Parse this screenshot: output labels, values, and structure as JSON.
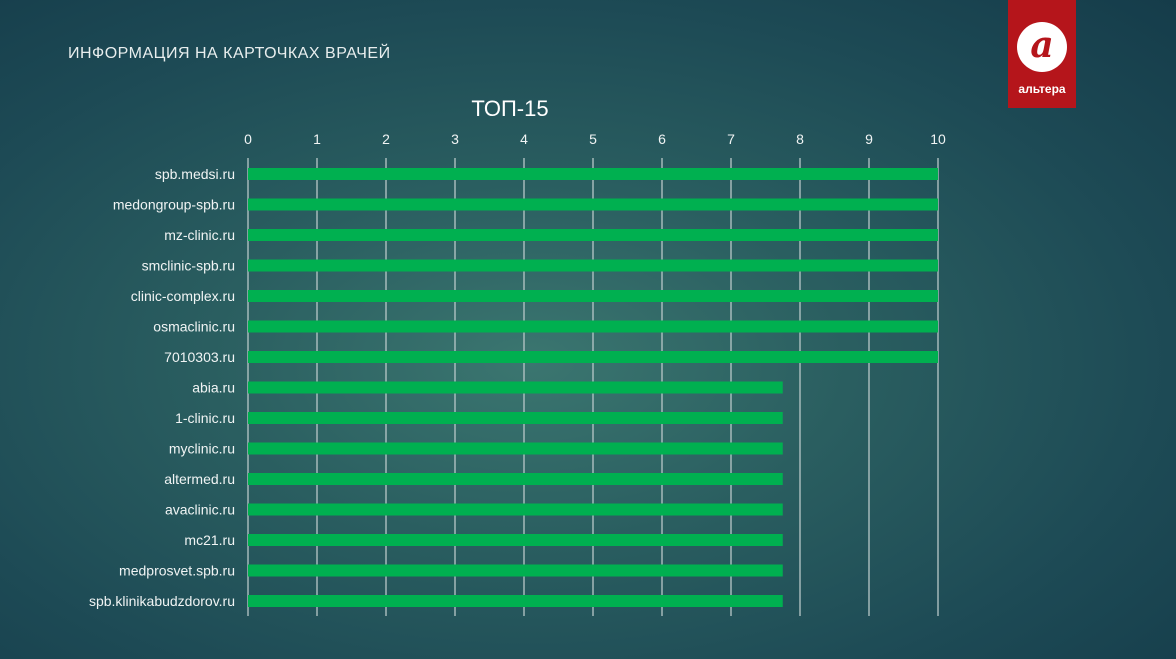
{
  "header": {
    "title": "ИНФОРМАЦИЯ НА КАРТОЧКАХ ВРАЧЕЙ"
  },
  "logo": {
    "text": "альтера",
    "glyph": "a"
  },
  "colors": {
    "bar": "#00b050",
    "logo_bg": "#b5151b"
  },
  "chart_data": {
    "type": "bar",
    "orientation": "horizontal",
    "title": "ТОП-15",
    "xlabel": "",
    "ylabel": "",
    "xlim": [
      0,
      10
    ],
    "x_ticks": [
      "0",
      "1",
      "2",
      "3",
      "4",
      "5",
      "6",
      "7",
      "8",
      "9",
      "10"
    ],
    "x_axis_position": "top",
    "grid": true,
    "categories": [
      "spb.medsi.ru",
      "medongroup-spb.ru",
      "mz-clinic.ru",
      "smclinic-spb.ru",
      "clinic-complex.ru",
      "osmaclinic.ru",
      "7010303.ru",
      "abia.ru",
      "1-clinic.ru",
      "myclinic.ru",
      "altermed.ru",
      "avaclinic.ru",
      "mc21.ru",
      "medprosvet.spb.ru",
      "spb.klinikabudzdorov.ru"
    ],
    "values": [
      10,
      10,
      10,
      10,
      10,
      10,
      10,
      7.75,
      7.75,
      7.75,
      7.75,
      7.75,
      7.75,
      7.75,
      7.75
    ]
  }
}
